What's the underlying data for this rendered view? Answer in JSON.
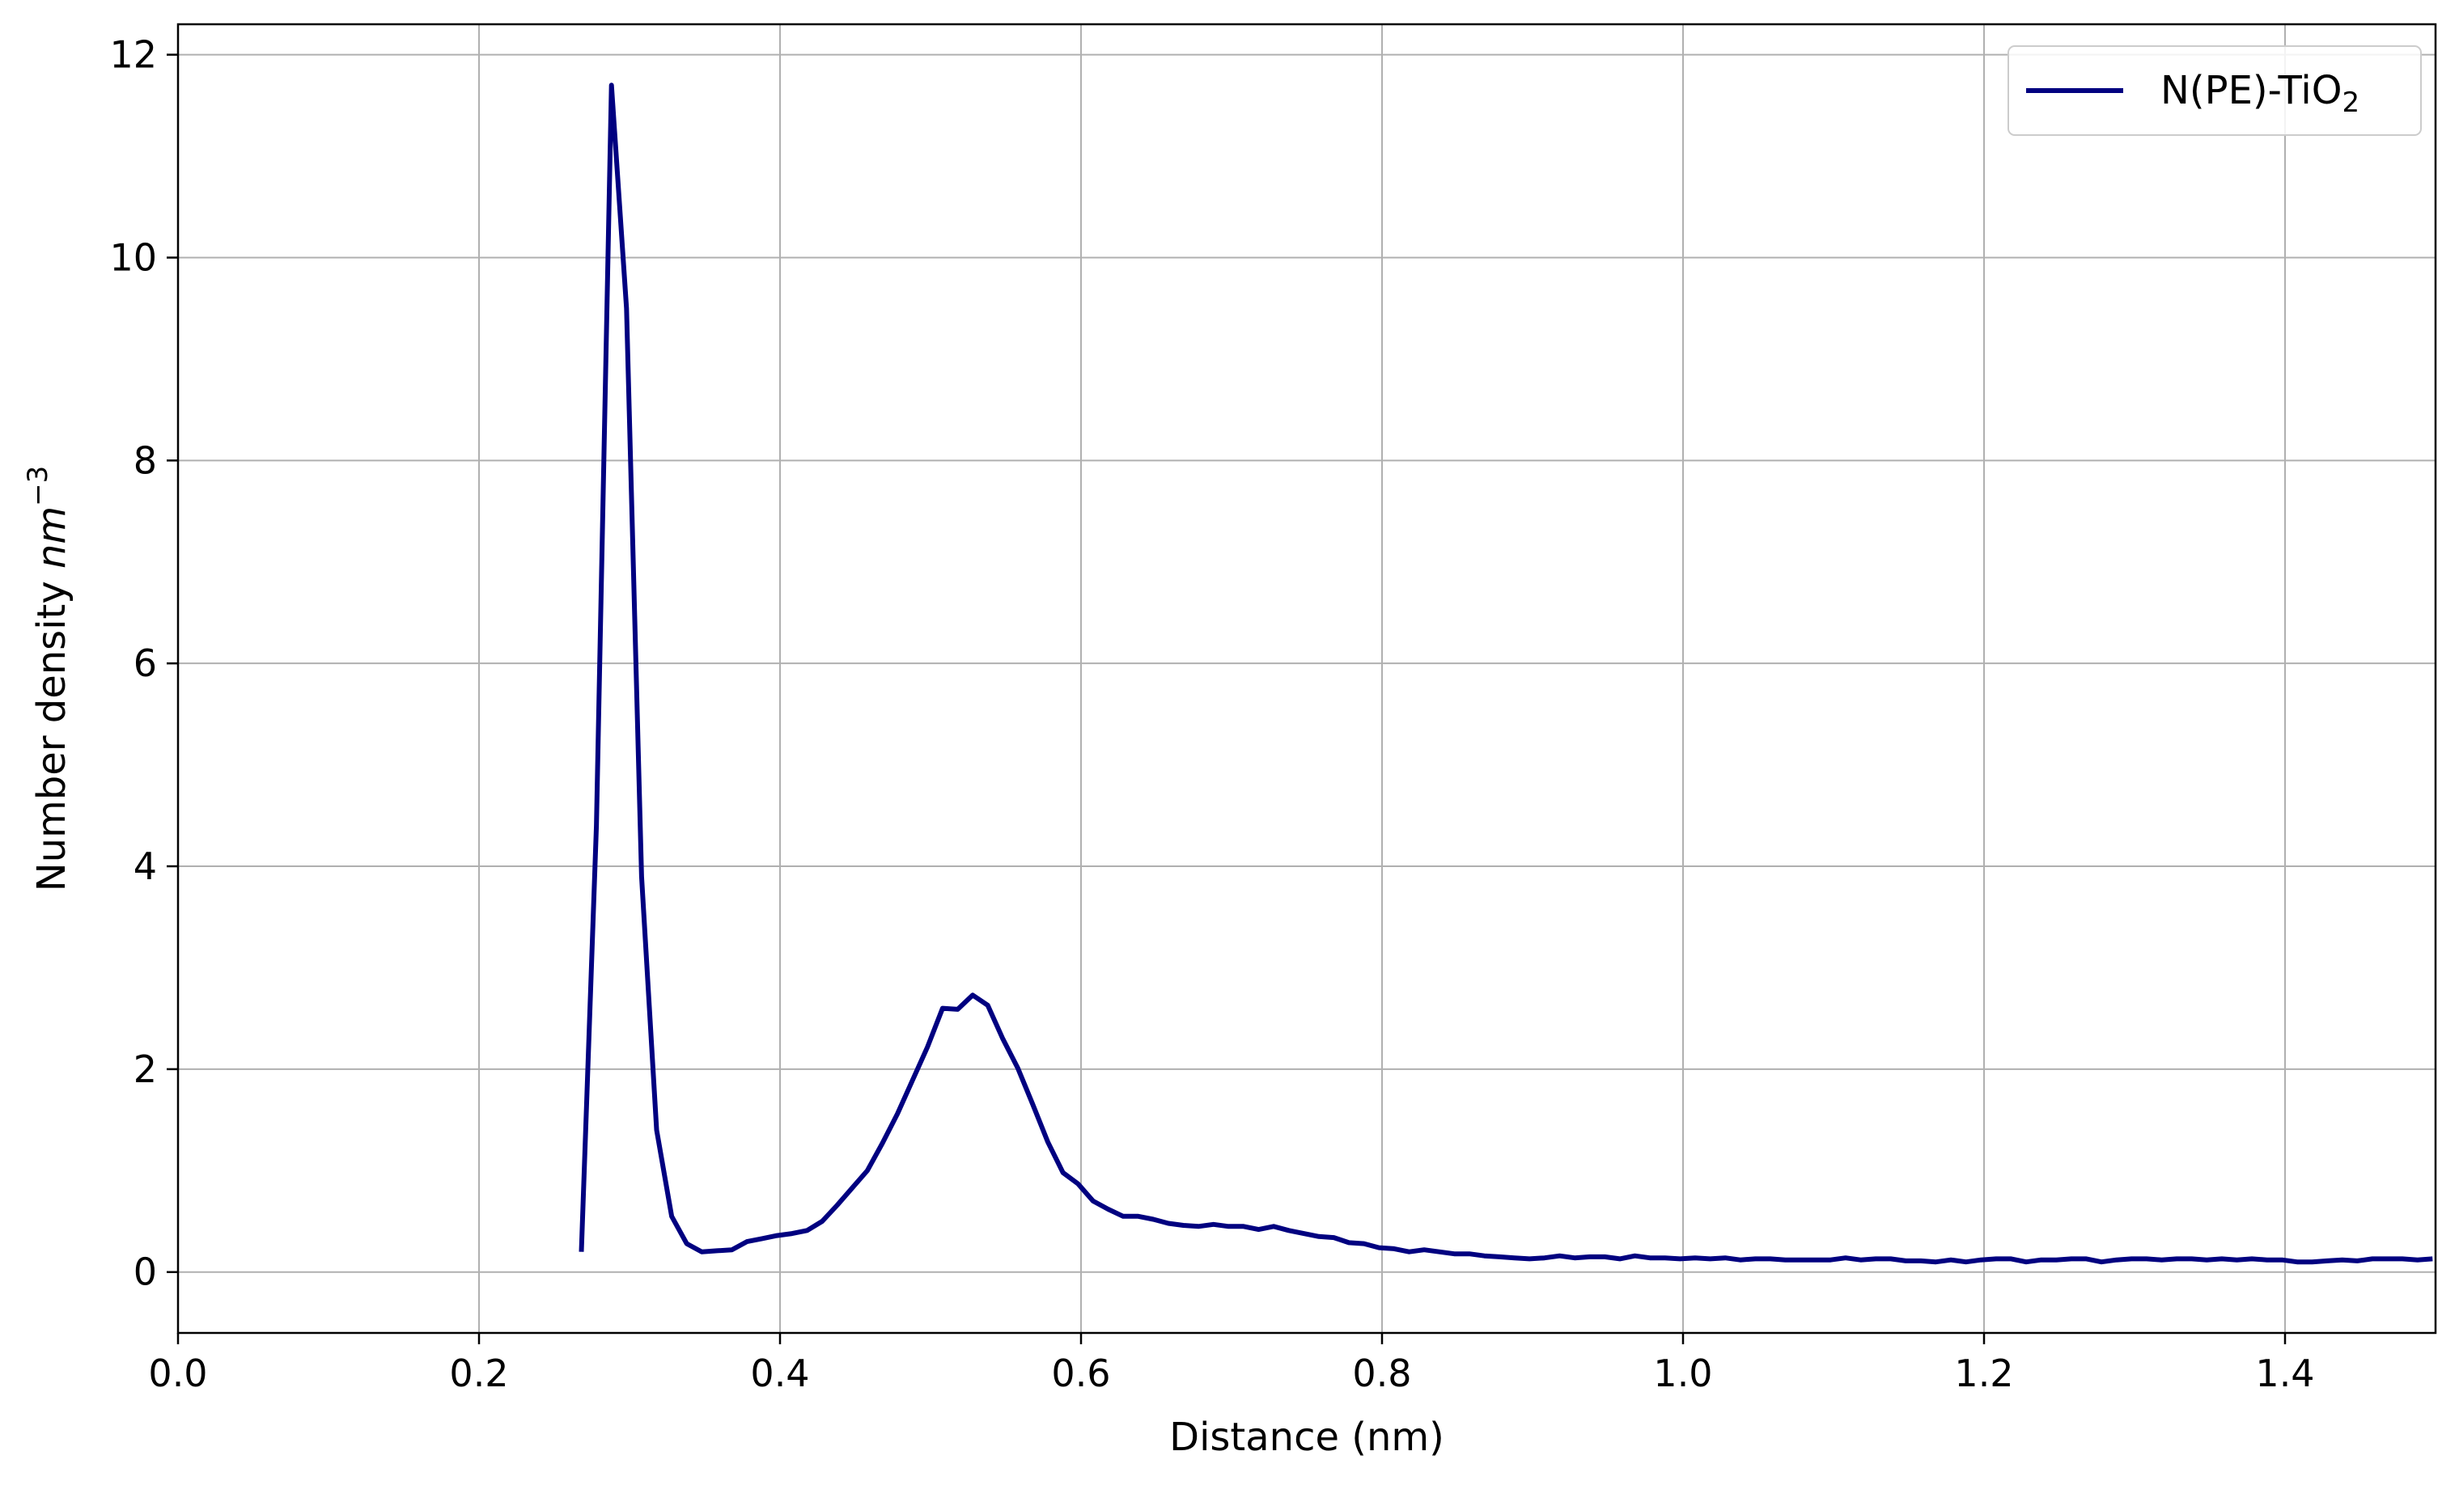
{
  "chart_data": {
    "type": "line",
    "xlabel": "Distance (nm)",
    "ylabel": {
      "prefix": "Number density ",
      "unit": "nm",
      "unit_exponent": "−3"
    },
    "xlim": [
      0.0,
      1.5
    ],
    "ylim": [
      -0.6,
      12.3
    ],
    "x_ticks": [
      0.0,
      0.2,
      0.4,
      0.6,
      0.8,
      1.0,
      1.2,
      1.4
    ],
    "x_tick_labels": [
      "0.0",
      "0.2",
      "0.4",
      "0.6",
      "0.8",
      "1.0",
      "1.2",
      "1.4"
    ],
    "y_ticks": [
      0,
      2,
      4,
      6,
      8,
      10,
      12
    ],
    "y_tick_labels": [
      "0",
      "2",
      "4",
      "6",
      "8",
      "10",
      "12"
    ],
    "grid": true,
    "legend_position": "top-right",
    "series": [
      {
        "name": "N(PE)-TiO",
        "name_subscript": "2",
        "color": "#000080",
        "x": [
          0.268,
          0.278,
          0.288,
          0.298,
          0.308,
          0.318,
          0.328,
          0.338,
          0.348,
          0.358,
          0.368,
          0.378,
          0.388,
          0.398,
          0.408,
          0.418,
          0.428,
          0.438,
          0.448,
          0.458,
          0.468,
          0.478,
          0.488,
          0.498,
          0.508,
          0.518,
          0.528,
          0.538,
          0.548,
          0.558,
          0.568,
          0.578,
          0.588,
          0.598,
          0.608,
          0.618,
          0.628,
          0.638,
          0.648,
          0.658,
          0.668,
          0.678,
          0.688,
          0.698,
          0.708,
          0.718,
          0.728,
          0.738,
          0.748,
          0.758,
          0.768,
          0.778,
          0.788,
          0.798,
          0.808,
          0.818,
          0.828,
          0.838,
          0.848,
          0.858,
          0.868,
          0.878,
          0.888,
          0.898,
          0.908,
          0.918,
          0.928,
          0.938,
          0.948,
          0.958,
          0.968,
          0.978,
          0.988,
          0.998,
          1.008,
          1.018,
          1.028,
          1.038,
          1.048,
          1.058,
          1.068,
          1.078,
          1.088,
          1.098,
          1.108,
          1.118,
          1.128,
          1.138,
          1.148,
          1.158,
          1.168,
          1.178,
          1.188,
          1.198,
          1.208,
          1.218,
          1.228,
          1.238,
          1.248,
          1.258,
          1.268,
          1.278,
          1.288,
          1.298,
          1.308,
          1.318,
          1.328,
          1.338,
          1.348,
          1.358,
          1.368,
          1.378,
          1.388,
          1.398,
          1.408,
          1.418,
          1.428,
          1.438,
          1.448,
          1.458,
          1.468,
          1.478,
          1.488,
          1.498
        ],
        "y": [
          0.2,
          4.4,
          11.7,
          9.5,
          3.9,
          1.4,
          0.55,
          0.28,
          0.2,
          0.21,
          0.22,
          0.3,
          0.33,
          0.36,
          0.38,
          0.41,
          0.5,
          0.66,
          0.83,
          1.0,
          1.27,
          1.56,
          1.89,
          2.22,
          2.6,
          2.59,
          2.73,
          2.63,
          2.3,
          2.01,
          1.65,
          1.28,
          0.98,
          0.87,
          0.7,
          0.62,
          0.55,
          0.55,
          0.52,
          0.48,
          0.46,
          0.45,
          0.47,
          0.45,
          0.45,
          0.42,
          0.45,
          0.41,
          0.38,
          0.35,
          0.34,
          0.29,
          0.28,
          0.24,
          0.23,
          0.2,
          0.22,
          0.2,
          0.18,
          0.18,
          0.16,
          0.15,
          0.14,
          0.13,
          0.14,
          0.16,
          0.14,
          0.15,
          0.15,
          0.13,
          0.16,
          0.14,
          0.14,
          0.13,
          0.14,
          0.13,
          0.14,
          0.12,
          0.13,
          0.13,
          0.12,
          0.12,
          0.12,
          0.12,
          0.14,
          0.12,
          0.13,
          0.13,
          0.11,
          0.11,
          0.1,
          0.12,
          0.1,
          0.12,
          0.13,
          0.13,
          0.1,
          0.12,
          0.12,
          0.13,
          0.13,
          0.1,
          0.12,
          0.13,
          0.13,
          0.12,
          0.13,
          0.13,
          0.12,
          0.13,
          0.12,
          0.13,
          0.12,
          0.12,
          0.1,
          0.1,
          0.11,
          0.12,
          0.11,
          0.13,
          0.13,
          0.13,
          0.12,
          0.13
        ]
      }
    ]
  }
}
